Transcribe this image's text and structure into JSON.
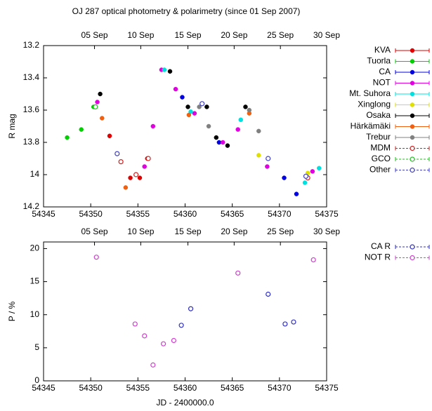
{
  "chart_data": [
    {
      "type": "scatter",
      "title": "OJ 287 optical photometry & polarimetry (since 01 Sep 2007)",
      "y_label": "R mag",
      "xlim": [
        54345,
        54375
      ],
      "xticks": [
        54345,
        54350,
        54355,
        54360,
        54365,
        54370,
        54375
      ],
      "x2ticks": [
        {
          "value": 54350.4,
          "label": "05 Sep"
        },
        {
          "value": 54355.3,
          "label": "10 Sep"
        },
        {
          "value": 54360.3,
          "label": "15 Sep"
        },
        {
          "value": 54365.2,
          "label": "20 Sep"
        },
        {
          "value": 54370.1,
          "label": "25 Sep"
        },
        {
          "value": 54375.0,
          "label": "30 Sep"
        }
      ],
      "ylim": [
        13.2,
        14.2
      ],
      "invert_y": true,
      "yticks": [
        13.2,
        13.4,
        13.6,
        13.8,
        14,
        14.2
      ],
      "series": [
        {
          "name": "KVA",
          "color": "#e00000",
          "marker": "filled",
          "x": [
            54352,
            54354.2,
            54355.2,
            54356
          ],
          "values": [
            13.76,
            14.02,
            14.02,
            13.9
          ]
        },
        {
          "name": "Tuorla",
          "color": "#00d000",
          "marker": "filled",
          "x": [
            54347.5,
            54349,
            54350.3
          ],
          "values": [
            13.77,
            13.72,
            13.58
          ]
        },
        {
          "name": "CA",
          "color": "#0000e0",
          "marker": "filled",
          "x": [
            54359.7,
            54363.6,
            54370.5,
            54371.8
          ],
          "values": [
            13.52,
            13.8,
            14.02,
            14.12
          ]
        },
        {
          "name": "NOT",
          "color": "#e000e0",
          "marker": "filled",
          "x": [
            54350.7,
            54355.7,
            54356.6,
            54357.5,
            54359,
            54361,
            54364,
            54365.6,
            54368.7,
            54373.5
          ],
          "values": [
            13.55,
            13.95,
            13.7,
            13.35,
            13.47,
            13.62,
            13.8,
            13.72,
            13.95,
            13.98
          ]
        },
        {
          "name": "Mt. Suhora",
          "color": "#00e0e0",
          "marker": "filled",
          "x": [
            54357.8,
            54360.6,
            54365.9,
            54372.7,
            54374.2
          ],
          "values": [
            13.35,
            13.61,
            13.66,
            14.05,
            13.96
          ]
        },
        {
          "name": "Xinglong",
          "color": "#e0e000",
          "marker": "filled",
          "x": [
            54367.8,
            54373
          ],
          "values": [
            13.88,
            13.99
          ]
        },
        {
          "name": "Osaka",
          "color": "#000000",
          "marker": "filled",
          "x": [
            54351,
            54358.4,
            54360.3,
            54362.3,
            54363.3,
            54364.5,
            54366.4
          ],
          "values": [
            13.5,
            13.36,
            13.58,
            13.58,
            13.77,
            13.82,
            13.58
          ]
        },
        {
          "name": "Härkämäki",
          "color": "#f06010",
          "marker": "filled",
          "x": [
            54351.2,
            54353.7,
            54360.4,
            54366.8
          ],
          "values": [
            13.65,
            14.08,
            13.63,
            13.62
          ]
        },
        {
          "name": "Trebur",
          "color": "#808080",
          "marker": "filled",
          "x": [
            54361.5,
            54362.5,
            54366.8,
            54367.8
          ],
          "values": [
            13.58,
            13.7,
            13.6,
            13.73
          ]
        },
        {
          "name": "MDM",
          "color": "#d02020",
          "marker": "open",
          "x": [
            54353.2,
            54354.8,
            54356.1,
            54373
          ],
          "values": [
            13.92,
            14.0,
            13.9,
            14.02
          ]
        },
        {
          "name": "GCO",
          "color": "#20c020",
          "marker": "open",
          "x": [
            54350.5
          ],
          "values": [
            13.58
          ]
        },
        {
          "name": "Other",
          "color": "#4040c0",
          "marker": "open",
          "x": [
            54352.8,
            54361.8,
            54368.8,
            54372.8
          ],
          "values": [
            13.87,
            13.56,
            13.9,
            14.01
          ]
        }
      ]
    },
    {
      "type": "scatter",
      "y_label": "P / %",
      "x_label": "JD - 2400000.0",
      "xlim": [
        54345,
        54375
      ],
      "xticks": [
        54345,
        54350,
        54355,
        54360,
        54365,
        54370,
        54375
      ],
      "x2ticks": [
        {
          "value": 54350.4,
          "label": "05 Sep"
        },
        {
          "value": 54355.3,
          "label": "10 Sep"
        },
        {
          "value": 54360.3,
          "label": "15 Sep"
        },
        {
          "value": 54365.2,
          "label": "20 Sep"
        },
        {
          "value": 54370.1,
          "label": "25 Sep"
        },
        {
          "value": 54375.0,
          "label": "30 Sep"
        }
      ],
      "ylim": [
        0,
        21
      ],
      "yticks": [
        0,
        5,
        10,
        15,
        20
      ],
      "series": [
        {
          "name": "CA R",
          "color": "#3030c0",
          "marker": "open",
          "x": [
            54359.6,
            54360.6,
            54368.8,
            54370.6,
            54371.5
          ],
          "values": [
            8.4,
            10.9,
            13.1,
            8.6,
            8.9
          ]
        },
        {
          "name": "NOT R",
          "color": "#d040d0",
          "marker": "open",
          "x": [
            54350.6,
            54354.7,
            54355.7,
            54356.6,
            54357.7,
            54358.8,
            54365.6,
            54373.6
          ],
          "values": [
            18.7,
            8.6,
            6.8,
            2.4,
            5.6,
            6.1,
            16.3,
            18.3
          ]
        }
      ]
    }
  ]
}
